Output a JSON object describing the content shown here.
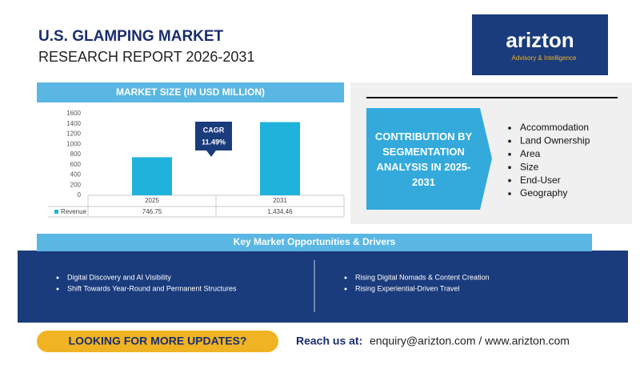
{
  "header": {
    "title": "U.S. GLAMPING MARKET",
    "subtitle": "RESEARCH REPORT 2026-2031"
  },
  "logo": {
    "name": "arizton",
    "tagline": "Advisory & Intelligence"
  },
  "chart_data": {
    "type": "bar",
    "title": "MARKET SIZE (IN USD MILLION)",
    "categories": [
      "2025",
      "2031"
    ],
    "series": [
      {
        "name": "Revenue",
        "color": "#1fb3dc",
        "values": [
          746.75,
          1434.46
        ],
        "value_labels": [
          "746.75",
          "1,434.46"
        ]
      }
    ],
    "ylim": [
      0,
      1600
    ],
    "yticks": [
      0,
      200,
      400,
      600,
      800,
      1000,
      1200,
      1400,
      1600
    ],
    "grid": false,
    "annotation": {
      "label": "CAGR",
      "value": "11.49%"
    }
  },
  "segmentation": {
    "title": "CONTRIBUTION BY SEGMENTATION ANALYSIS IN 2025-2031",
    "items": [
      "Accommodation",
      "Land Ownership",
      "Area",
      "Size",
      "End-User",
      "Geography"
    ]
  },
  "opportunities": {
    "title": "Key Market Opportunities & Drivers",
    "left": [
      "Digital Discovery and AI Visibility",
      "Shift Towards Year-Round and Permanent Structures"
    ],
    "right": [
      "Rising Digital Nomads & Content Creation",
      "Rising Experiential-Driven Travel"
    ]
  },
  "footer": {
    "cta": "LOOKING FOR MORE UPDATES?",
    "reach_label": "Reach us at:",
    "contact": "enquiry@arizton.com / www.arizton.com"
  }
}
